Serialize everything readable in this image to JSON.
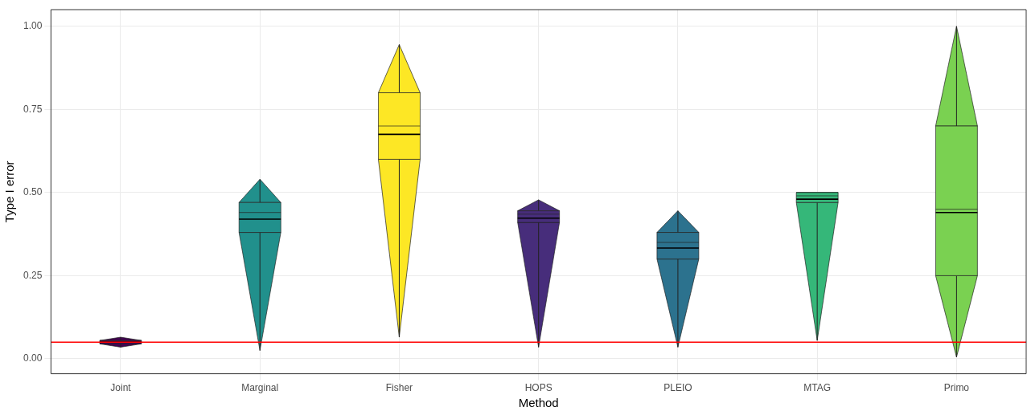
{
  "chart_data": {
    "type": "box",
    "xlabel": "Method",
    "ylabel": "Type I error",
    "categories": [
      "Joint",
      "Marginal",
      "Fisher",
      "HOPS",
      "PLEIO",
      "MTAG",
      "Primo"
    ],
    "colors": [
      "#440154",
      "#21908c",
      "#fde725",
      "#472d7b",
      "#2c728e",
      "#35b779",
      "#7ad151"
    ],
    "boxes": [
      {
        "low": 0.035,
        "q1": 0.045,
        "median": 0.05,
        "q3": 0.055,
        "high": 0.065,
        "mean": 0.05
      },
      {
        "low": 0.025,
        "q1": 0.38,
        "median": 0.44,
        "q3": 0.47,
        "high": 0.54,
        "mean": 0.42
      },
      {
        "low": 0.065,
        "q1": 0.6,
        "median": 0.7,
        "q3": 0.8,
        "high": 0.945,
        "mean": 0.675
      },
      {
        "low": 0.035,
        "q1": 0.41,
        "median": 0.435,
        "q3": 0.445,
        "high": 0.478,
        "mean": 0.423
      },
      {
        "low": 0.035,
        "q1": 0.3,
        "median": 0.35,
        "q3": 0.38,
        "high": 0.445,
        "mean": 0.333
      },
      {
        "low": 0.055,
        "q1": 0.47,
        "median": 0.49,
        "q3": 0.5,
        "high": 0.5,
        "mean": 0.48
      },
      {
        "low": 0.005,
        "q1": 0.25,
        "median": 0.45,
        "q3": 0.7,
        "high": 1.0,
        "mean": 0.44
      }
    ],
    "ylim": [
      -0.045,
      1.05
    ],
    "yticks": [
      {
        "value": 0,
        "label": "0.00"
      },
      {
        "value": 0.25,
        "label": "0.25"
      },
      {
        "value": 0.5,
        "label": "0.50"
      },
      {
        "value": 0.75,
        "label": "0.75"
      },
      {
        "value": 1,
        "label": "1.00"
      }
    ],
    "grid": true,
    "ref_lines": [
      {
        "axis": "y",
        "value": 0.05,
        "color": "#ff0000"
      }
    ]
  }
}
